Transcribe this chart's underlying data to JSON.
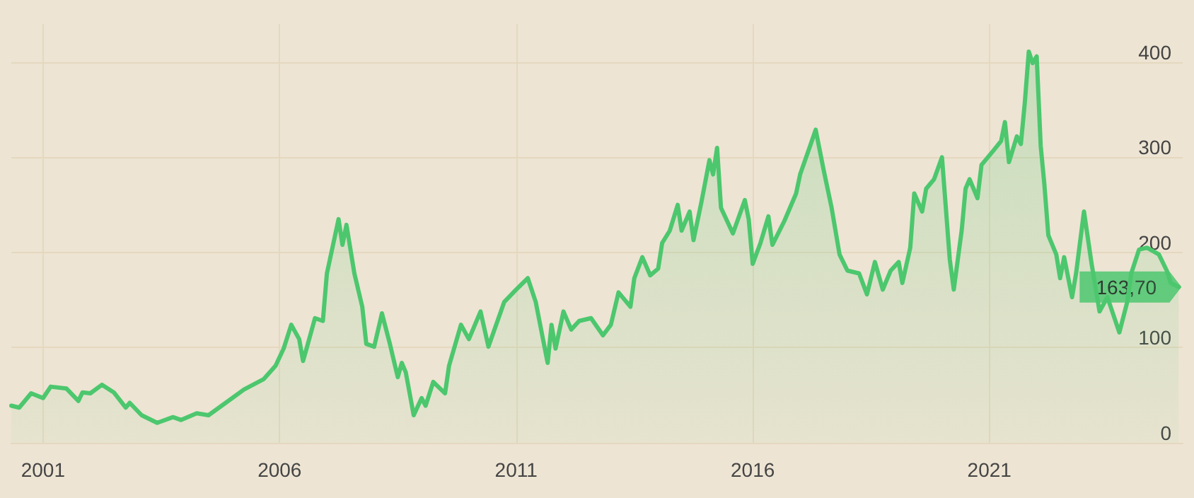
{
  "chart_data": {
    "type": "area",
    "x": [
      "2000-05",
      "2000-07",
      "2000-10",
      "2001-01",
      "2001-03",
      "2001-07",
      "2001-10",
      "2001-11",
      "2002-01",
      "2002-04",
      "2002-07",
      "2002-10",
      "2002-11",
      "2003-02",
      "2003-06",
      "2003-10",
      "2003-12",
      "2004-04",
      "2004-07",
      "2004-12",
      "2005-04",
      "2005-09",
      "2005-12",
      "2006-02",
      "2006-04",
      "2006-06",
      "2006-07",
      "2006-08",
      "2006-10",
      "2006-12",
      "2007-01",
      "2007-04",
      "2007-05",
      "2007-06",
      "2007-08",
      "2007-10",
      "2007-11",
      "2008-01",
      "2008-03",
      "2008-05",
      "2008-07",
      "2008-08",
      "2008-09",
      "2008-11",
      "2009-01",
      "2009-02",
      "2009-04",
      "2009-07",
      "2009-08",
      "2009-11",
      "2010-01",
      "2010-04",
      "2010-06",
      "2010-10",
      "2011-01",
      "2011-04",
      "2011-06",
      "2011-09",
      "2011-10",
      "2011-11",
      "2012-01",
      "2012-03",
      "2012-05",
      "2012-08",
      "2012-11",
      "2013-01",
      "2013-03",
      "2013-06",
      "2013-07",
      "2013-09",
      "2013-11",
      "2014-01",
      "2014-02",
      "2014-04",
      "2014-06",
      "2014-07",
      "2014-09",
      "2014-10",
      "2014-12",
      "2015-02",
      "2015-03",
      "2015-04",
      "2015-05",
      "2015-08",
      "2015-11",
      "2015-12",
      "2016-01",
      "2016-03",
      "2016-05",
      "2016-06",
      "2016-09",
      "2016-12",
      "2017-01",
      "2017-04",
      "2017-05",
      "2017-07",
      "2017-09",
      "2017-11",
      "2018-01",
      "2018-04",
      "2018-06",
      "2018-08",
      "2018-10",
      "2018-12",
      "2019-02",
      "2019-03",
      "2019-05",
      "2019-06",
      "2019-08",
      "2019-09",
      "2019-11",
      "2020-01",
      "2020-03",
      "2020-04",
      "2020-06",
      "2020-07",
      "2020-08",
      "2020-10",
      "2020-11",
      "2021-02",
      "2021-04",
      "2021-05",
      "2021-06",
      "2021-08",
      "2021-09",
      "2021-10",
      "2021-11",
      "2021-12",
      "2022-01",
      "2022-02",
      "2022-03",
      "2022-04",
      "2022-06",
      "2022-07",
      "2022-08",
      "2022-10",
      "2022-11",
      "2023-01",
      "2023-03",
      "2023-05",
      "2023-07",
      "2023-10",
      "2023-12",
      "2024-01",
      "2024-03",
      "2024-05",
      "2024-08",
      "2024-10",
      "2024-11",
      "2025-01"
    ],
    "series": [
      {
        "color": "#4cc76e",
        "values": [
          39,
          37,
          52,
          47,
          59,
          57,
          44,
          53,
          52,
          61,
          53,
          37,
          42,
          29,
          21,
          27,
          24,
          31,
          29,
          44,
          56,
          67,
          81,
          99,
          124,
          109,
          86,
          101,
          131,
          128,
          178,
          235,
          208,
          229,
          178,
          143,
          104,
          101,
          136,
          104,
          69,
          84,
          74,
          29,
          47,
          39,
          64,
          52,
          81,
          124,
          109,
          138,
          101,
          148,
          161,
          173,
          148,
          84,
          124,
          99,
          138,
          119,
          128,
          131,
          113,
          124,
          158,
          143,
          173,
          195,
          176,
          183,
          210,
          223,
          250,
          223,
          243,
          213,
          253,
          297,
          282,
          310,
          247,
          220,
          255,
          235,
          188,
          210,
          238,
          208,
          233,
          262,
          282,
          317,
          329,
          287,
          247,
          198,
          181,
          178,
          156,
          190,
          161,
          181,
          190,
          168,
          205,
          262,
          243,
          267,
          277,
          300,
          193,
          161,
          223,
          267,
          277,
          257,
          292,
          307,
          317,
          337,
          295,
          322,
          314,
          357,
          411,
          399,
          406,
          312,
          272,
          218,
          198,
          173,
          195,
          153,
          178,
          243,
          188,
          138,
          153,
          116,
          148,
          178,
          203,
          205,
          198,
          181,
          168,
          163.7
        ]
      }
    ],
    "xlim": [
      "2000-05",
      "2025-02"
    ],
    "xticks": [
      "2001",
      "2006",
      "2011",
      "2016",
      "2021"
    ],
    "ylim": [
      0,
      440
    ],
    "yticks": [
      0,
      100,
      200,
      300,
      400
    ],
    "grid": true,
    "marker": "none",
    "annotations": [
      {
        "text": "163,70",
        "x": "2025-01",
        "y": 163.7
      }
    ]
  }
}
